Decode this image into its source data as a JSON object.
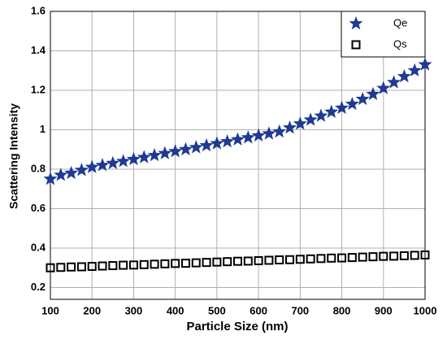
{
  "chart_data": {
    "type": "scatter",
    "xlabel": "Particle Size (nm)",
    "ylabel": "Scattering Intensity",
    "x": [
      100,
      125,
      150,
      175,
      200,
      225,
      250,
      275,
      300,
      325,
      350,
      375,
      400,
      425,
      450,
      475,
      500,
      525,
      550,
      575,
      600,
      625,
      650,
      675,
      700,
      725,
      750,
      775,
      800,
      825,
      850,
      875,
      900,
      925,
      950,
      975,
      1000
    ],
    "series": [
      {
        "name": "Qe",
        "color": "#1f3a93",
        "marker": "star",
        "values": [
          0.75,
          0.77,
          0.78,
          0.795,
          0.81,
          0.82,
          0.83,
          0.84,
          0.85,
          0.86,
          0.87,
          0.88,
          0.89,
          0.9,
          0.91,
          0.92,
          0.93,
          0.94,
          0.95,
          0.96,
          0.97,
          0.98,
          0.99,
          1.01,
          1.03,
          1.05,
          1.07,
          1.09,
          1.11,
          1.13,
          1.155,
          1.18,
          1.21,
          1.24,
          1.27,
          1.3,
          1.33
        ]
      },
      {
        "name": "Qs",
        "color": "#000000",
        "marker": "square",
        "values": [
          0.3,
          0.302,
          0.304,
          0.305,
          0.307,
          0.309,
          0.311,
          0.313,
          0.314,
          0.316,
          0.318,
          0.32,
          0.322,
          0.323,
          0.325,
          0.327,
          0.329,
          0.331,
          0.333,
          0.334,
          0.336,
          0.338,
          0.34,
          0.341,
          0.343,
          0.345,
          0.347,
          0.349,
          0.35,
          0.352,
          0.354,
          0.356,
          0.358,
          0.359,
          0.361,
          0.363,
          0.365
        ]
      }
    ],
    "xlim": [
      100,
      1000
    ],
    "xticks": [
      100,
      200,
      300,
      400,
      500,
      600,
      700,
      800,
      900,
      1000
    ],
    "ylim": [
      0.14,
      1.6
    ],
    "yticks": [
      0.2,
      0.4,
      0.6,
      0.8,
      1,
      1.2,
      1.4,
      1.6
    ],
    "grid": true,
    "legend": "upper right"
  }
}
